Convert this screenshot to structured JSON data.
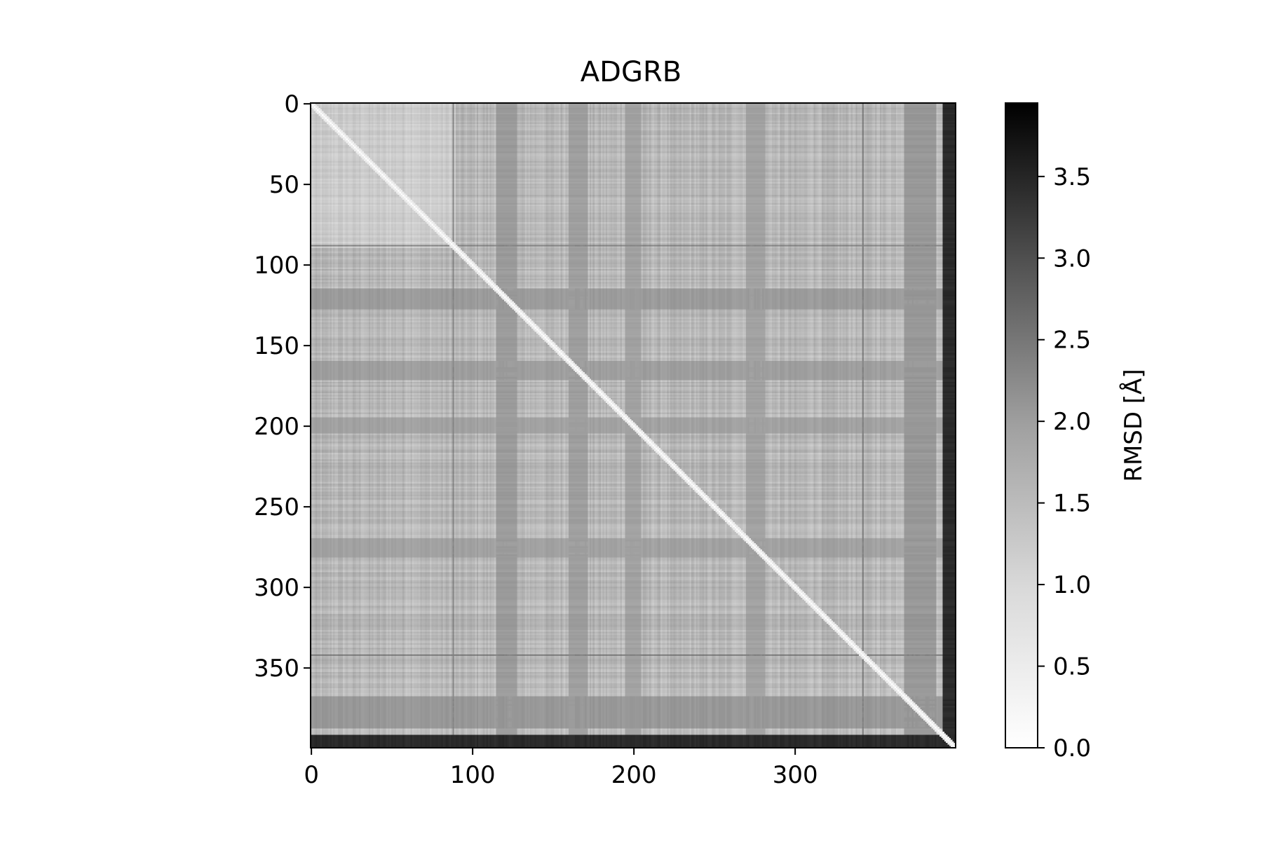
{
  "chart_data": {
    "type": "heatmap",
    "title": "ADGRB",
    "xlabel": "",
    "ylabel": "",
    "n": 400,
    "x_ticks": [
      0,
      100,
      200,
      300
    ],
    "y_ticks": [
      0,
      50,
      100,
      150,
      200,
      250,
      300,
      350
    ],
    "x_tick_labels": [
      "0",
      "100",
      "200",
      "300"
    ],
    "y_tick_labels": [
      "0",
      "50",
      "100",
      "150",
      "200",
      "250",
      "300",
      "350"
    ],
    "colormap": "Greys",
    "colorbar": {
      "label": "RMSD [Å]",
      "range": [
        0.0,
        3.95
      ],
      "ticks": [
        0.0,
        0.5,
        1.0,
        1.5,
        2.0,
        2.5,
        3.0,
        3.5
      ],
      "tick_labels": [
        "0.0",
        "0.5",
        "1.0",
        "1.5",
        "2.0",
        "2.5",
        "3.0",
        "3.5"
      ],
      "position": "right"
    },
    "matrix_description": "Symmetric pairwise RMSD matrix; diagonal = 0.0",
    "typical_values": {
      "diagonal": 0.0,
      "low_block_0_90": 0.8,
      "background": 1.1,
      "stripe_mid": 1.6,
      "dark_stripe": 2.2,
      "edge_rows_392_400": 3.3
    },
    "dark_bands": [
      {
        "from": 392,
        "to": 400,
        "value": 3.3
      },
      {
        "from": 88,
        "to": 89,
        "value": 1.9
      },
      {
        "from": 342,
        "to": 343,
        "value": 1.9
      }
    ],
    "mid_bands": [
      {
        "from": 115,
        "to": 128,
        "value": 1.55
      },
      {
        "from": 368,
        "to": 388,
        "value": 1.6
      },
      {
        "from": 160,
        "to": 172,
        "value": 1.5
      },
      {
        "from": 195,
        "to": 205,
        "value": 1.45
      },
      {
        "from": 270,
        "to": 282,
        "value": 1.45
      }
    ],
    "grid": false
  }
}
